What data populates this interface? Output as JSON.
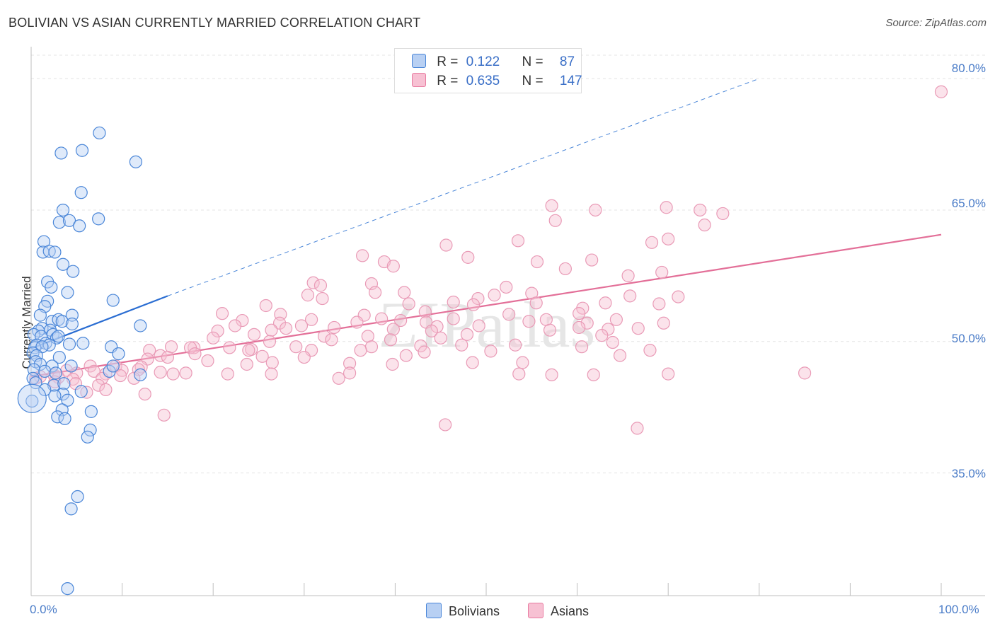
{
  "chart_data": {
    "type": "scatter",
    "title": "BOLIVIAN VS ASIAN CURRENTLY MARRIED CORRELATION CHART",
    "source": "Source: ZipAtlas.com",
    "xlabel": "",
    "ylabel": "Currently Married",
    "xlim": [
      0,
      100
    ],
    "ylim": [
      21,
      83
    ],
    "x_tick_labels": {
      "left": "0.0%",
      "right": "100.0%"
    },
    "y_ticks": [
      {
        "value": 35,
        "label": "35.0%"
      },
      {
        "value": 50,
        "label": "50.0%"
      },
      {
        "value": 65,
        "label": "65.0%"
      },
      {
        "value": 80,
        "label": "80.0%"
      }
    ],
    "grid": true,
    "watermark": "ZIPatlas",
    "legend": {
      "r_label": "R =",
      "n_label": "N =",
      "entries": [
        {
          "name": "Bolivians",
          "r": "0.122",
          "n": "87",
          "color": "#4a86d8",
          "fill": "#b8d0f3"
        },
        {
          "name": "Asians",
          "r": "0.635",
          "n": "147",
          "color": "#e87aa0",
          "fill": "#f7c1d3"
        }
      ]
    },
    "series": [
      {
        "name": "Bolivians",
        "trend": {
          "x0": 0,
          "y0": 49.2,
          "x1": 15,
          "y1": 55.2,
          "dash_to_x": 80,
          "dash_to_y": 80
        },
        "points": [
          [
            7.5,
            73.8
          ],
          [
            3.3,
            71.5
          ],
          [
            5.6,
            71.8
          ],
          [
            11.5,
            70.5
          ],
          [
            5.5,
            67.0
          ],
          [
            3.5,
            65.0
          ],
          [
            7.4,
            64.0
          ],
          [
            3.1,
            63.6
          ],
          [
            4.2,
            63.8
          ],
          [
            5.3,
            63.2
          ],
          [
            1.4,
            61.4
          ],
          [
            1.3,
            60.2
          ],
          [
            2.0,
            60.3
          ],
          [
            2.6,
            60.2
          ],
          [
            3.5,
            58.8
          ],
          [
            4.6,
            58.0
          ],
          [
            1.8,
            56.8
          ],
          [
            2.2,
            56.2
          ],
          [
            4.0,
            55.6
          ],
          [
            9.0,
            54.7
          ],
          [
            1.8,
            54.6
          ],
          [
            1.5,
            54.0
          ],
          [
            1.0,
            53.0
          ],
          [
            4.5,
            53.0
          ],
          [
            2.3,
            52.3
          ],
          [
            3.0,
            52.5
          ],
          [
            3.4,
            52.3
          ],
          [
            4.5,
            52.0
          ],
          [
            12.0,
            51.8
          ],
          [
            1.2,
            51.5
          ],
          [
            0.8,
            51.2
          ],
          [
            2.1,
            51.3
          ],
          [
            0.3,
            50.8
          ],
          [
            1.1,
            50.6
          ],
          [
            2.4,
            50.8
          ],
          [
            2.8,
            50.4
          ],
          [
            3.0,
            50.6
          ],
          [
            0.6,
            49.6
          ],
          [
            1.6,
            49.8
          ],
          [
            2.0,
            49.6
          ],
          [
            0.4,
            49.3
          ],
          [
            1.2,
            49.4
          ],
          [
            4.2,
            49.7
          ],
          [
            5.7,
            49.8
          ],
          [
            8.8,
            49.4
          ],
          [
            0.2,
            48.7
          ],
          [
            0.6,
            48.4
          ],
          [
            3.1,
            48.2
          ],
          [
            9.6,
            48.6
          ],
          [
            0.5,
            47.7
          ],
          [
            1.0,
            47.4
          ],
          [
            0.3,
            46.8
          ],
          [
            2.3,
            47.2
          ],
          [
            4.4,
            47.2
          ],
          [
            1.5,
            46.6
          ],
          [
            2.7,
            46.4
          ],
          [
            8.6,
            46.6
          ],
          [
            9.0,
            47.2
          ],
          [
            12.0,
            46.2
          ],
          [
            0.2,
            45.8
          ],
          [
            0.5,
            45.3
          ],
          [
            2.5,
            45.0
          ],
          [
            3.6,
            45.2
          ],
          [
            1.5,
            44.5
          ],
          [
            3.5,
            44.0
          ],
          [
            5.5,
            44.3
          ],
          [
            2.6,
            43.8
          ],
          [
            4.0,
            43.3
          ],
          [
            0.1,
            43.2
          ],
          [
            3.4,
            42.2
          ],
          [
            6.6,
            42.0
          ],
          [
            2.9,
            41.4
          ],
          [
            3.7,
            41.2
          ],
          [
            6.5,
            39.9
          ],
          [
            6.2,
            39.1
          ],
          [
            5.1,
            32.3
          ],
          [
            4.4,
            30.9
          ],
          [
            4.0,
            21.8
          ]
        ],
        "big_points": [
          [
            0.1,
            43.5
          ]
        ]
      },
      {
        "name": "Asians",
        "trend": {
          "x0": 0,
          "y0": 46.0,
          "x1": 100,
          "y1": 62.2
        },
        "points": [
          [
            100.0,
            78.5
          ],
          [
            57.2,
            65.5
          ],
          [
            62.0,
            65.0
          ],
          [
            69.8,
            65.3
          ],
          [
            73.5,
            65.0
          ],
          [
            76.0,
            64.6
          ],
          [
            57.6,
            63.8
          ],
          [
            74.0,
            63.3
          ],
          [
            53.5,
            61.5
          ],
          [
            68.2,
            61.3
          ],
          [
            70.0,
            61.7
          ],
          [
            45.6,
            61.0
          ],
          [
            48.0,
            59.6
          ],
          [
            36.4,
            59.8
          ],
          [
            38.8,
            59.1
          ],
          [
            55.6,
            59.1
          ],
          [
            61.6,
            59.3
          ],
          [
            39.8,
            58.6
          ],
          [
            58.7,
            58.3
          ],
          [
            65.6,
            57.5
          ],
          [
            69.3,
            57.9
          ],
          [
            31.0,
            56.7
          ],
          [
            37.4,
            56.6
          ],
          [
            31.8,
            56.4
          ],
          [
            52.2,
            56.2
          ],
          [
            37.8,
            55.6
          ],
          [
            41.0,
            55.6
          ],
          [
            30.4,
            55.3
          ],
          [
            49.1,
            54.9
          ],
          [
            50.9,
            55.3
          ],
          [
            55.0,
            55.5
          ],
          [
            65.8,
            55.2
          ],
          [
            71.1,
            55.1
          ],
          [
            32.0,
            54.9
          ],
          [
            41.5,
            54.3
          ],
          [
            46.4,
            54.5
          ],
          [
            48.6,
            54.2
          ],
          [
            55.5,
            54.4
          ],
          [
            63.1,
            54.4
          ],
          [
            69.0,
            54.3
          ],
          [
            25.8,
            54.1
          ],
          [
            60.6,
            53.8
          ],
          [
            21.0,
            53.2
          ],
          [
            27.4,
            53.1
          ],
          [
            36.6,
            53.0
          ],
          [
            43.3,
            53.4
          ],
          [
            52.5,
            53.1
          ],
          [
            60.2,
            53.2
          ],
          [
            38.5,
            52.6
          ],
          [
            23.2,
            52.4
          ],
          [
            30.8,
            52.5
          ],
          [
            40.6,
            52.4
          ],
          [
            46.4,
            52.6
          ],
          [
            56.6,
            52.5
          ],
          [
            64.3,
            52.5
          ],
          [
            27.3,
            52.1
          ],
          [
            35.8,
            52.2
          ],
          [
            43.4,
            52.2
          ],
          [
            54.7,
            52.3
          ],
          [
            61.1,
            52.1
          ],
          [
            69.5,
            52.1
          ],
          [
            22.4,
            51.8
          ],
          [
            29.7,
            51.8
          ],
          [
            33.3,
            51.6
          ],
          [
            44.6,
            51.7
          ],
          [
            49.2,
            51.8
          ],
          [
            60.2,
            51.6
          ],
          [
            66.7,
            51.5
          ],
          [
            20.5,
            51.2
          ],
          [
            26.4,
            51.3
          ],
          [
            28.0,
            51.5
          ],
          [
            39.8,
            51.4
          ],
          [
            44.0,
            51.2
          ],
          [
            57.0,
            51.3
          ],
          [
            63.4,
            51.4
          ],
          [
            24.5,
            50.8
          ],
          [
            32.2,
            50.6
          ],
          [
            37.0,
            50.6
          ],
          [
            47.9,
            50.8
          ],
          [
            62.7,
            50.7
          ],
          [
            20.0,
            50.4
          ],
          [
            26.2,
            50.0
          ],
          [
            33.0,
            50.2
          ],
          [
            39.5,
            50.2
          ],
          [
            45.0,
            50.4
          ],
          [
            63.9,
            49.9
          ],
          [
            15.4,
            49.4
          ],
          [
            17.9,
            49.3
          ],
          [
            21.8,
            49.3
          ],
          [
            24.2,
            49.1
          ],
          [
            29.1,
            49.4
          ],
          [
            37.4,
            49.4
          ],
          [
            42.8,
            49.5
          ],
          [
            47.3,
            49.6
          ],
          [
            53.2,
            49.6
          ],
          [
            60.5,
            49.4
          ],
          [
            68.0,
            49.0
          ],
          [
            13.0,
            49.0
          ],
          [
            17.5,
            49.3
          ],
          [
            23.9,
            49.0
          ],
          [
            30.8,
            49.0
          ],
          [
            36.2,
            49.0
          ],
          [
            43.2,
            48.8
          ],
          [
            50.5,
            48.9
          ],
          [
            14.2,
            48.4
          ],
          [
            18.0,
            48.6
          ],
          [
            25.4,
            48.3
          ],
          [
            30.0,
            48.2
          ],
          [
            41.2,
            48.4
          ],
          [
            64.7,
            48.4
          ],
          [
            12.8,
            48.0
          ],
          [
            15.0,
            48.2
          ],
          [
            19.4,
            47.8
          ],
          [
            23.7,
            47.4
          ],
          [
            26.5,
            47.6
          ],
          [
            35.0,
            47.5
          ],
          [
            39.7,
            47.4
          ],
          [
            48.5,
            47.6
          ],
          [
            54.0,
            47.6
          ],
          [
            6.5,
            47.2
          ],
          [
            9.3,
            47.2
          ],
          [
            12.1,
            47.1
          ],
          [
            3.9,
            46.7
          ],
          [
            6.9,
            46.6
          ],
          [
            10.0,
            46.7
          ],
          [
            11.8,
            46.8
          ],
          [
            14.2,
            46.5
          ],
          [
            17.0,
            46.4
          ],
          [
            21.6,
            46.3
          ],
          [
            26.4,
            46.3
          ],
          [
            35.0,
            46.4
          ],
          [
            61.8,
            46.2
          ],
          [
            2.5,
            46.2
          ],
          [
            5.0,
            46.4
          ],
          [
            8.2,
            46.3
          ],
          [
            9.8,
            46.1
          ],
          [
            1.0,
            46.0
          ],
          [
            3.0,
            45.9
          ],
          [
            4.6,
            45.7
          ],
          [
            7.8,
            45.8
          ],
          [
            11.3,
            45.8
          ],
          [
            15.6,
            46.3
          ],
          [
            33.8,
            45.8
          ],
          [
            57.2,
            46.2
          ],
          [
            53.6,
            46.3
          ],
          [
            70.0,
            46.3
          ],
          [
            85.0,
            46.4
          ],
          [
            0.5,
            45.8
          ],
          [
            2.6,
            45.4
          ],
          [
            4.9,
            45.2
          ],
          [
            7.4,
            45.0
          ],
          [
            6.1,
            44.2
          ],
          [
            8.2,
            44.5
          ],
          [
            12.5,
            44.0
          ],
          [
            14.6,
            41.6
          ],
          [
            45.5,
            40.5
          ],
          [
            66.6,
            40.1
          ]
        ]
      }
    ]
  }
}
